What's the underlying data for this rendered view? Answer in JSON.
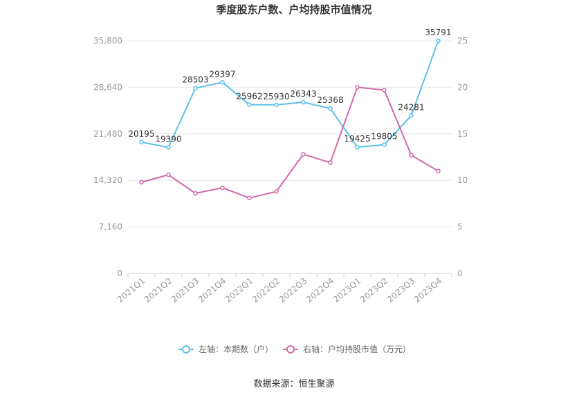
{
  "chart_data": {
    "type": "line",
    "title": "季度股东户数、户均持股市值情况",
    "categories": [
      "2021Q1",
      "2021Q2",
      "2021Q3",
      "2021Q4",
      "2022Q1",
      "2022Q2",
      "2022Q3",
      "2022Q4",
      "2023Q1",
      "2023Q2",
      "2023Q3",
      "2023Q4"
    ],
    "y_left": {
      "ticks": [
        "0",
        "7,160",
        "14,320",
        "21,480",
        "28,640",
        "35,800"
      ],
      "ylim": [
        0,
        35800
      ]
    },
    "y_right": {
      "ticks": [
        "0",
        "5",
        "10",
        "15",
        "20",
        "25"
      ],
      "ylim": [
        0,
        25
      ]
    },
    "series": [
      {
        "name": "左轴：本期数（户）",
        "axis": "left",
        "color": "#5bc0eb",
        "values": [
          20195,
          19390,
          28503,
          29397,
          25962,
          25930,
          26343,
          25368,
          19425,
          19805,
          24281,
          35791
        ],
        "labels": [
          "20195",
          "19390",
          "28503",
          "29397",
          "25962",
          "25930",
          "26343",
          "25368",
          "19425",
          "19805",
          "24281",
          "35791"
        ]
      },
      {
        "name": "右轴：户均持股市值（万元）",
        "axis": "right",
        "color": "#d268a8",
        "values": [
          9.8,
          10.6,
          8.6,
          9.2,
          8.1,
          8.8,
          12.8,
          11.9,
          20.0,
          19.7,
          12.7,
          11.0
        ]
      }
    ],
    "grid": true,
    "legend_position": "bottom"
  },
  "footer": {
    "source": "数据来源：恒生聚源"
  }
}
